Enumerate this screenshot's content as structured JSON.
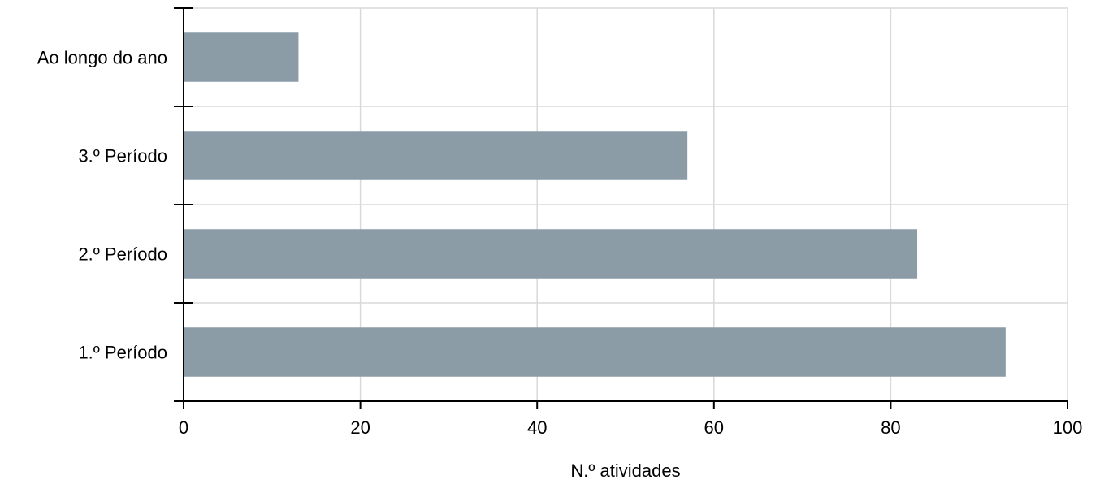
{
  "chart_data": {
    "type": "bar",
    "orientation": "horizontal",
    "categories": [
      "Ao longo do ano",
      "3.º Período",
      "2.º Período",
      "1.º Período"
    ],
    "values": [
      13,
      57,
      83,
      93
    ],
    "title": "",
    "xlabel": "N.º atividades",
    "ylabel": "",
    "xlim": [
      0,
      100
    ],
    "xticks": [
      0,
      20,
      40,
      60,
      80,
      100
    ],
    "grid": true,
    "legend": "none",
    "bar_color": "#8b9ca7"
  }
}
